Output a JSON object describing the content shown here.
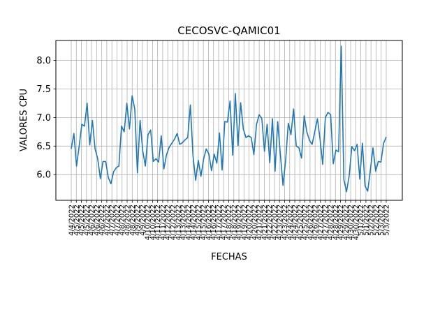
{
  "chart_data": {
    "type": "line",
    "title": "CECOSVC-QAMIC01",
    "xlabel": "FECHAS",
    "ylabel": "VALORES CPU",
    "ylim": [
      5.55,
      8.35
    ],
    "yticks": [
      6.0,
      6.5,
      7.0,
      7.5,
      8.0
    ],
    "ytick_labels": [
      "6.0",
      "6.5",
      "7.0",
      "7.5",
      "8.0"
    ],
    "grid": true,
    "color": "#1f77b4",
    "xtick_labels": [
      "4/4/2022",
      "4/5/2022",
      "4/5/2022",
      "4/5/2022",
      "4/6/2022",
      "4/6/2022",
      "4/6/2022",
      "4/7/2022",
      "4/7/2022",
      "4/7/2022",
      "4/8/2022",
      "4/8/2022",
      "4/8/2022",
      "4/9/2022",
      "4/9/2022",
      "4/10/2022",
      "4/10/2022",
      "4/11/2022",
      "4/11/2022",
      "4/12/2022",
      "4/12/2022",
      "4/13/2022",
      "4/13/2022",
      "4/14/2022",
      "4/14/2022",
      "4/15/2022",
      "4/15/2022",
      "4/16/2022",
      "4/16/2022",
      "4/17/2022",
      "4/17/2022",
      "4/18/2022",
      "4/18/2022",
      "4/19/2022",
      "4/19/2022",
      "4/20/2022",
      "4/20/2022",
      "4/21/2022",
      "4/21/2022",
      "4/22/2022",
      "4/22/2022",
      "4/23/2022",
      "4/23/2022",
      "4/24/2022",
      "4/24/2022",
      "4/25/2022",
      "4/25/2022",
      "4/26/2022",
      "4/26/2022",
      "4/27/2022",
      "4/27/2022",
      "4/28/2022",
      "4/28/2022",
      "4/29/2022",
      "4/29/2022",
      "4/30/2022",
      "4/30/2022",
      "5/1/2022",
      "5/1/2022",
      "5/2/2022",
      "5/2/2022",
      "5/3/2022",
      "5/3/2022"
    ],
    "series": [
      {
        "values": [
          6.45,
          6.72,
          6.15,
          6.5,
          6.88,
          6.85,
          7.25,
          6.52,
          6.95,
          6.45,
          6.28,
          5.93,
          6.23,
          6.23,
          5.95,
          5.84,
          6.05,
          6.12,
          6.15,
          6.85,
          6.75,
          7.25,
          6.8,
          7.38,
          7.15,
          6.03,
          6.95,
          6.42,
          6.15,
          6.7,
          6.78,
          6.23,
          6.28,
          6.22,
          6.68,
          6.1,
          6.35,
          6.48,
          6.55,
          6.62,
          6.72,
          6.53,
          6.56,
          6.61,
          6.65,
          7.22,
          6.33,
          5.9,
          6.25,
          5.97,
          6.27,
          6.45,
          6.36,
          6.07,
          6.36,
          6.2,
          6.73,
          6.08,
          6.93,
          6.92,
          7.29,
          6.34,
          7.42,
          6.51,
          7.26,
          6.8,
          6.65,
          6.68,
          6.65,
          6.35,
          6.88,
          7.05,
          6.98,
          6.41,
          6.88,
          6.21,
          6.98,
          6.06,
          6.93,
          6.36,
          5.81,
          6.25,
          6.9,
          6.7,
          7.15,
          6.5,
          6.47,
          6.29,
          7.03,
          6.75,
          6.6,
          6.53,
          6.75,
          6.98,
          6.62,
          6.18,
          7.0,
          7.09,
          7.05,
          6.19,
          6.43,
          6.4,
          8.25,
          5.91,
          5.7,
          5.98,
          6.49,
          6.42,
          6.53,
          5.92,
          6.55,
          5.8,
          5.71,
          6.08,
          6.47,
          6.06,
          6.23,
          6.22,
          6.55,
          6.66
        ]
      }
    ]
  }
}
